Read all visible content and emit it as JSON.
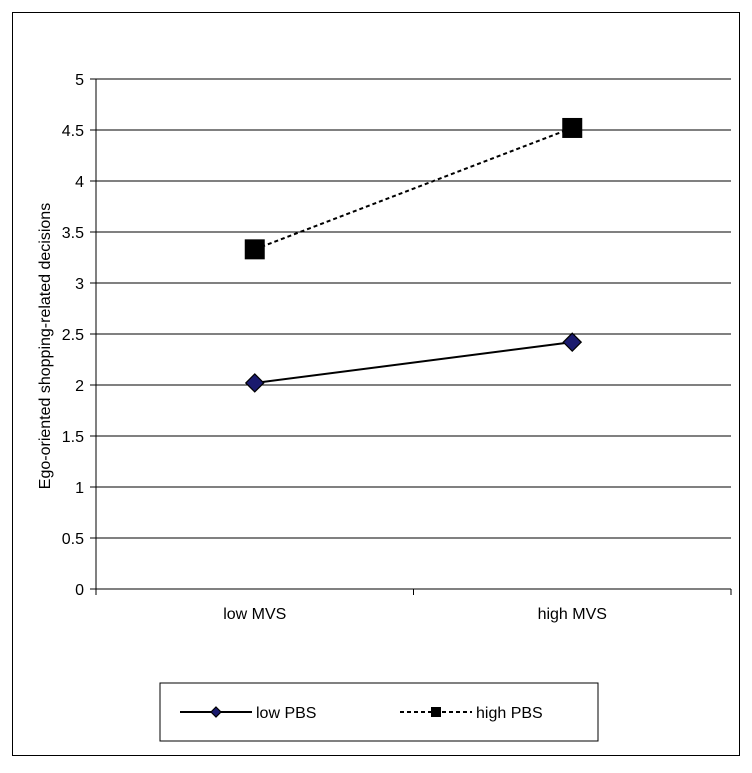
{
  "chart_data": {
    "type": "line",
    "title": "",
    "xlabel": "",
    "ylabel": "Ego-oriented shopping-related decisions",
    "categories": [
      "low MVS",
      "high MVS"
    ],
    "ylim": [
      0,
      5
    ],
    "yticks": [
      "0",
      "0.5",
      "1",
      "1.5",
      "2",
      "2.5",
      "3",
      "3.5",
      "4",
      "4.5",
      "5"
    ],
    "ytick_values": [
      0,
      0.5,
      1,
      1.5,
      2,
      2.5,
      3,
      3.5,
      4,
      4.5,
      5
    ],
    "grid": true,
    "legend_position": "bottom",
    "series": [
      {
        "name": "low PBS",
        "values": [
          2.02,
          2.42
        ],
        "marker": "diamond",
        "line": "solid",
        "marker_color": "#1a1a6e"
      },
      {
        "name": "high PBS",
        "values": [
          3.33,
          4.52
        ],
        "marker": "square",
        "line": "dashed",
        "marker_color": "#000000"
      }
    ]
  }
}
